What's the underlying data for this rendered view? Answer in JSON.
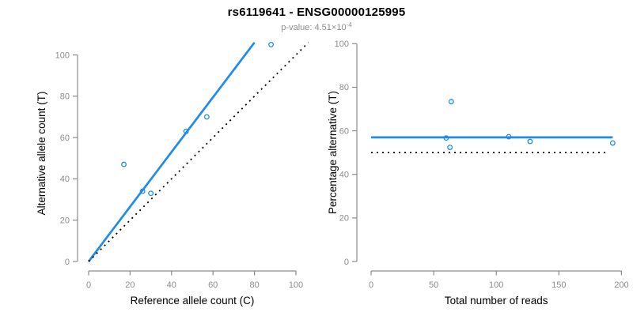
{
  "page": {
    "title": "rs6119641 - ENSG00000125995",
    "subtitle": {
      "text": "p-value: 4.51×10",
      "exponent": "-4"
    }
  },
  "colors": {
    "accent_blue": "#1f8ceb",
    "axis_gray": "#8c8c8c",
    "tick_text_gray": "#8c8c8c",
    "label_black": "#000000",
    "dotted_black": "#000000"
  },
  "chart_data": [
    {
      "type": "scatter",
      "name": "allele-count-scatter",
      "xlabel": "Reference allele count (C)",
      "ylabel": "Alternative allele count (T)",
      "xticks": [
        0,
        20,
        40,
        60,
        80,
        100
      ],
      "yticks": [
        0,
        20,
        40,
        60,
        80,
        100
      ],
      "xlim": [
        -4,
        109
      ],
      "ylim": [
        -4,
        109
      ],
      "grid": false,
      "legend": false,
      "points": [
        [
          17,
          47
        ],
        [
          26,
          34
        ],
        [
          30,
          33
        ],
        [
          47,
          63
        ],
        [
          57,
          70
        ],
        [
          88,
          105
        ]
      ],
      "lines": [
        {
          "name": "fit-line",
          "style": "solid",
          "color": "blue",
          "x1": 0,
          "y1": 0,
          "x2": 80,
          "y2": 106
        },
        {
          "name": "identity-line",
          "style": "dotted",
          "color": "black",
          "x1": 0,
          "y1": 0,
          "x2": 106,
          "y2": 106
        }
      ]
    },
    {
      "type": "scatter",
      "name": "percentage-vs-reads-scatter",
      "xlabel": "Total number of reads",
      "ylabel": "Percentage alternative (T)",
      "xticks": [
        0,
        50,
        100,
        150,
        200
      ],
      "yticks": [
        0,
        20,
        40,
        60,
        80,
        100
      ],
      "xlim": [
        -8,
        201
      ],
      "ylim": [
        -4,
        104
      ],
      "grid": false,
      "legend": false,
      "points": [
        [
          60,
          56.7
        ],
        [
          63,
          52.4
        ],
        [
          64,
          73.4
        ],
        [
          110,
          57.3
        ],
        [
          127,
          55.1
        ],
        [
          193,
          54.4
        ]
      ],
      "lines": [
        {
          "name": "mean-percentage-line",
          "style": "solid",
          "color": "blue",
          "x1": 0,
          "y1": 57,
          "x2": 193,
          "y2": 57
        },
        {
          "name": "expected-50-line",
          "style": "dotted",
          "color": "black",
          "x1": 0,
          "y1": 50,
          "x2": 189,
          "y2": 50
        }
      ]
    }
  ]
}
